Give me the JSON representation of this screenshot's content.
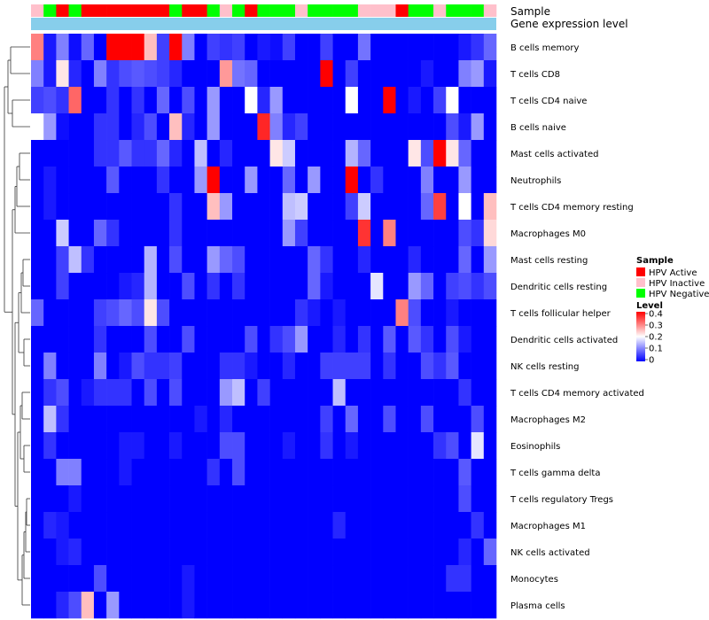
{
  "chart_data": {
    "type": "heatmap",
    "title": "",
    "annotation_tracks": [
      {
        "name": "Sample",
        "values": [
          "HPV Inactive",
          "HPV Negative",
          "HPV Active",
          "HPV Negative",
          "HPV Active",
          "HPV Active",
          "HPV Active",
          "HPV Active",
          "HPV Active",
          "HPV Active",
          "HPV Active",
          "HPV Negative",
          "HPV Active",
          "HPV Active",
          "HPV Negative",
          "HPV Inactive",
          "HPV Negative",
          "HPV Active",
          "HPV Negative",
          "HPV Negative",
          "HPV Negative",
          "HPV Inactive",
          "HPV Negative",
          "HPV Negative",
          "HPV Negative",
          "HPV Negative",
          "HPV Inactive",
          "HPV Inactive",
          "HPV Inactive",
          "HPV Active",
          "HPV Negative",
          "HPV Negative",
          "HPV Inactive",
          "HPV Negative",
          "HPV Negative",
          "HPV Negative",
          "HPV Inactive"
        ]
      },
      {
        "name": "Gene expression level"
      }
    ],
    "rows": [
      "B cells memory",
      "T cells CD8",
      "T cells CD4 naive",
      "B cells naive",
      "Mast cells activated",
      "Neutrophils",
      "T cells CD4 memory resting",
      "Macrophages M0",
      "Mast cells resting",
      "Dendritic cells resting",
      "T cells follicular helper",
      "Dendritic cells activated",
      "NK cells resting",
      "T cells CD4 memory activated",
      "Macrophages M2",
      "Eosinophils",
      "T cells gamma delta",
      "T cells regulatory  Tregs",
      "Macrophages M1",
      "NK cells activated",
      "Monocytes",
      "Plasma cells"
    ],
    "values": [
      [
        0.3,
        0.02,
        0.1,
        0.01,
        0.08,
        0.0,
        0.4,
        0.4,
        0.4,
        0.25,
        0.05,
        0.4,
        0.1,
        0.0,
        0.05,
        0.04,
        0.05,
        0.0,
        0.02,
        0.01,
        0.05,
        0.0,
        0.0,
        0.05,
        0.0,
        0.0,
        0.09,
        0.0,
        0.0,
        0.0,
        0.0,
        0.0,
        0.0,
        0.0,
        0.02,
        0.04,
        0.08
      ],
      [
        0.1,
        0.02,
        0.22,
        0.03,
        0.0,
        0.1,
        0.04,
        0.06,
        0.07,
        0.06,
        0.05,
        0.03,
        0.0,
        0.0,
        0.0,
        0.28,
        0.09,
        0.08,
        0.0,
        0.0,
        0.0,
        0.0,
        0.0,
        0.4,
        0.0,
        0.05,
        0.0,
        0.0,
        0.0,
        0.0,
        0.0,
        0.02,
        0.0,
        0.0,
        0.1,
        0.12,
        0.02
      ],
      [
        0.05,
        0.06,
        0.04,
        0.32,
        0.0,
        0.0,
        0.04,
        0.0,
        0.04,
        0.0,
        0.08,
        0.0,
        0.06,
        0.0,
        0.12,
        0.0,
        0.0,
        0.2,
        0.03,
        0.12,
        0.0,
        0.0,
        0.0,
        0.0,
        0.0,
        0.2,
        0.0,
        0.0,
        0.4,
        0.0,
        0.02,
        0.0,
        0.05,
        0.2,
        0.0,
        0.0,
        0.0
      ],
      [
        0.2,
        0.12,
        0.01,
        0.0,
        0.0,
        0.04,
        0.04,
        0.0,
        0.03,
        0.06,
        0.0,
        0.25,
        0.03,
        0.0,
        0.12,
        0.0,
        0.0,
        0.0,
        0.37,
        0.1,
        0.03,
        0.05,
        0.0,
        0.0,
        0.0,
        0.0,
        0.0,
        0.0,
        0.0,
        0.0,
        0.0,
        0.0,
        0.0,
        0.06,
        0.02,
        0.12,
        0.0
      ],
      [
        0.0,
        0.0,
        0.0,
        0.0,
        0.0,
        0.04,
        0.04,
        0.07,
        0.04,
        0.04,
        0.08,
        0.03,
        0.0,
        0.15,
        0.0,
        0.03,
        0.0,
        0.0,
        0.0,
        0.22,
        0.16,
        0.0,
        0.0,
        0.0,
        0.0,
        0.14,
        0.08,
        0.0,
        0.0,
        0.0,
        0.22,
        0.06,
        0.4,
        0.22,
        0.08,
        0.0,
        0.0
      ],
      [
        0.0,
        0.02,
        0.0,
        0.0,
        0.0,
        0.0,
        0.07,
        0.0,
        0.0,
        0.0,
        0.04,
        0.0,
        0.0,
        0.12,
        0.4,
        0.0,
        0.0,
        0.12,
        0.0,
        0.0,
        0.08,
        0.0,
        0.12,
        0.0,
        0.0,
        0.4,
        0.0,
        0.04,
        0.0,
        0.0,
        0.0,
        0.1,
        0.0,
        0.0,
        0.12,
        0.0,
        0.0
      ],
      [
        0.0,
        0.02,
        0.0,
        0.0,
        0.0,
        0.0,
        0.0,
        0.0,
        0.0,
        0.0,
        0.0,
        0.04,
        0.0,
        0.0,
        0.25,
        0.12,
        0.0,
        0.0,
        0.0,
        0.0,
        0.15,
        0.16,
        0.0,
        0.0,
        0.0,
        0.05,
        0.16,
        0.0,
        0.0,
        0.0,
        0.0,
        0.08,
        0.35,
        0.0,
        0.2,
        0.0,
        0.25
      ],
      [
        0.0,
        0.0,
        0.16,
        0.0,
        0.0,
        0.08,
        0.04,
        0.0,
        0.0,
        0.0,
        0.0,
        0.04,
        0.0,
        0.0,
        0.0,
        0.0,
        0.0,
        0.0,
        0.0,
        0.0,
        0.12,
        0.05,
        0.0,
        0.0,
        0.0,
        0.0,
        0.36,
        0.0,
        0.3,
        0.0,
        0.0,
        0.0,
        0.0,
        0.0,
        0.06,
        0.04,
        0.23
      ],
      [
        0.0,
        0.0,
        0.05,
        0.15,
        0.04,
        0.0,
        0.0,
        0.0,
        0.0,
        0.14,
        0.0,
        0.06,
        0.0,
        0.0,
        0.12,
        0.08,
        0.06,
        0.0,
        0.0,
        0.0,
        0.0,
        0.0,
        0.08,
        0.04,
        0.0,
        0.0,
        0.03,
        0.0,
        0.0,
        0.0,
        0.03,
        0.0,
        0.0,
        0.0,
        0.08,
        0.0,
        0.12
      ],
      [
        0.0,
        0.0,
        0.05,
        0.0,
        0.0,
        0.0,
        0.0,
        0.02,
        0.03,
        0.14,
        0.0,
        0.0,
        0.06,
        0.0,
        0.04,
        0.0,
        0.04,
        0.0,
        0.0,
        0.0,
        0.0,
        0.0,
        0.08,
        0.02,
        0.0,
        0.0,
        0.0,
        0.18,
        0.0,
        0.0,
        0.12,
        0.08,
        0.0,
        0.05,
        0.06,
        0.04,
        0.06
      ],
      [
        0.08,
        0.0,
        0.0,
        0.0,
        0.0,
        0.05,
        0.06,
        0.08,
        0.06,
        0.22,
        0.06,
        0.0,
        0.0,
        0.0,
        0.0,
        0.0,
        0.0,
        0.0,
        0.0,
        0.0,
        0.0,
        0.04,
        0.02,
        0.0,
        0.02,
        0.0,
        0.0,
        0.0,
        0.0,
        0.3,
        0.06,
        0.0,
        0.0,
        0.02,
        0.0,
        0.0,
        0.0
      ],
      [
        0.0,
        0.0,
        0.0,
        0.0,
        0.0,
        0.04,
        0.0,
        0.0,
        0.0,
        0.06,
        0.0,
        0.0,
        0.06,
        0.0,
        0.0,
        0.0,
        0.0,
        0.06,
        0.0,
        0.04,
        0.06,
        0.12,
        0.0,
        0.0,
        0.03,
        0.0,
        0.04,
        0.0,
        0.07,
        0.0,
        0.07,
        0.04,
        0.0,
        0.06,
        0.02,
        0.0,
        0.0
      ],
      [
        0.0,
        0.1,
        0.0,
        0.0,
        0.0,
        0.1,
        0.0,
        0.02,
        0.06,
        0.04,
        0.04,
        0.05,
        0.0,
        0.0,
        0.0,
        0.04,
        0.04,
        0.02,
        0.0,
        0.0,
        0.03,
        0.0,
        0.0,
        0.05,
        0.05,
        0.05,
        0.05,
        0.0,
        0.04,
        0.0,
        0.0,
        0.06,
        0.04,
        0.07,
        0.0,
        0.0,
        0.0
      ],
      [
        0.0,
        0.04,
        0.06,
        0.0,
        0.02,
        0.04,
        0.04,
        0.04,
        0.0,
        0.06,
        0.0,
        0.06,
        0.0,
        0.0,
        0.0,
        0.12,
        0.15,
        0.0,
        0.05,
        0.0,
        0.0,
        0.0,
        0.0,
        0.0,
        0.15,
        0.0,
        0.0,
        0.0,
        0.0,
        0.0,
        0.0,
        0.0,
        0.0,
        0.0,
        0.04,
        0.0,
        0.0
      ],
      [
        0.0,
        0.15,
        0.04,
        0.0,
        0.0,
        0.0,
        0.0,
        0.0,
        0.0,
        0.0,
        0.0,
        0.0,
        0.0,
        0.02,
        0.0,
        0.03,
        0.0,
        0.0,
        0.0,
        0.0,
        0.0,
        0.0,
        0.0,
        0.05,
        0.0,
        0.08,
        0.0,
        0.0,
        0.06,
        0.0,
        0.0,
        0.06,
        0.0,
        0.0,
        0.0,
        0.06,
        0.0
      ],
      [
        0.0,
        0.04,
        0.0,
        0.0,
        0.0,
        0.0,
        0.0,
        0.02,
        0.02,
        0.0,
        0.0,
        0.02,
        0.0,
        0.0,
        0.0,
        0.06,
        0.06,
        0.0,
        0.0,
        0.0,
        0.02,
        0.0,
        0.0,
        0.04,
        0.0,
        0.02,
        0.0,
        0.0,
        0.0,
        0.0,
        0.0,
        0.0,
        0.04,
        0.06,
        0.0,
        0.18,
        0.0
      ],
      [
        0.0,
        0.0,
        0.1,
        0.1,
        0.0,
        0.0,
        0.0,
        0.02,
        0.0,
        0.0,
        0.0,
        0.0,
        0.0,
        0.0,
        0.04,
        0.0,
        0.06,
        0.0,
        0.0,
        0.0,
        0.0,
        0.0,
        0.0,
        0.0,
        0.0,
        0.0,
        0.0,
        0.0,
        0.0,
        0.0,
        0.0,
        0.0,
        0.0,
        0.0,
        0.07,
        0.0,
        0.0
      ],
      [
        0.0,
        0.0,
        0.0,
        0.02,
        0.0,
        0.0,
        0.0,
        0.0,
        0.0,
        0.0,
        0.0,
        0.0,
        0.0,
        0.0,
        0.0,
        0.0,
        0.0,
        0.0,
        0.0,
        0.0,
        0.0,
        0.0,
        0.0,
        0.0,
        0.0,
        0.0,
        0.0,
        0.0,
        0.0,
        0.0,
        0.0,
        0.0,
        0.0,
        0.0,
        0.06,
        0.0,
        0.0
      ],
      [
        0.0,
        0.03,
        0.02,
        0.0,
        0.0,
        0.0,
        0.0,
        0.0,
        0.0,
        0.0,
        0.0,
        0.0,
        0.0,
        0.0,
        0.0,
        0.0,
        0.0,
        0.0,
        0.0,
        0.0,
        0.0,
        0.0,
        0.0,
        0.0,
        0.03,
        0.0,
        0.0,
        0.0,
        0.0,
        0.0,
        0.0,
        0.0,
        0.0,
        0.0,
        0.0,
        0.04,
        0.0
      ],
      [
        0.0,
        0.0,
        0.02,
        0.03,
        0.0,
        0.0,
        0.0,
        0.0,
        0.0,
        0.0,
        0.0,
        0.0,
        0.0,
        0.0,
        0.0,
        0.0,
        0.0,
        0.0,
        0.0,
        0.0,
        0.0,
        0.0,
        0.0,
        0.0,
        0.0,
        0.0,
        0.0,
        0.0,
        0.0,
        0.0,
        0.0,
        0.0,
        0.0,
        0.0,
        0.03,
        0.0,
        0.08
      ],
      [
        0.0,
        0.0,
        0.0,
        0.0,
        0.0,
        0.06,
        0.0,
        0.0,
        0.0,
        0.0,
        0.0,
        0.0,
        0.02,
        0.0,
        0.0,
        0.0,
        0.0,
        0.0,
        0.0,
        0.0,
        0.0,
        0.0,
        0.0,
        0.0,
        0.0,
        0.0,
        0.0,
        0.0,
        0.0,
        0.0,
        0.0,
        0.0,
        0.0,
        0.04,
        0.04,
        0.0,
        0.0
      ],
      [
        0.0,
        0.0,
        0.03,
        0.06,
        0.25,
        0.0,
        0.12,
        0.0,
        0.0,
        0.0,
        0.0,
        0.0,
        0.02,
        0.0,
        0.0,
        0.0,
        0.0,
        0.0,
        0.0,
        0.0,
        0.0,
        0.0,
        0.0,
        0.0,
        0.0,
        0.0,
        0.0,
        0.0,
        0.0,
        0.0,
        0.0,
        0.0,
        0.0,
        0.0,
        0.0,
        0.0,
        0.0
      ]
    ],
    "color_scale": {
      "min": 0,
      "max": 0.4,
      "low": "#0000ff",
      "mid": "#ffffff",
      "high": "#ff0000"
    },
    "legend": {
      "sample_title": "Sample",
      "sample_items": [
        {
          "label": "HPV Active",
          "color": "#ff0000"
        },
        {
          "label": "HPV Inactive",
          "color": "#ffc0cb"
        },
        {
          "label": "HPV Negative",
          "color": "#00ff00"
        }
      ],
      "level_title": "Level",
      "level_ticks": [
        "0.4",
        "0.3",
        "0.2",
        "0.1",
        "0"
      ],
      "position": "right"
    },
    "expression_track_color": "#87ceeb"
  }
}
